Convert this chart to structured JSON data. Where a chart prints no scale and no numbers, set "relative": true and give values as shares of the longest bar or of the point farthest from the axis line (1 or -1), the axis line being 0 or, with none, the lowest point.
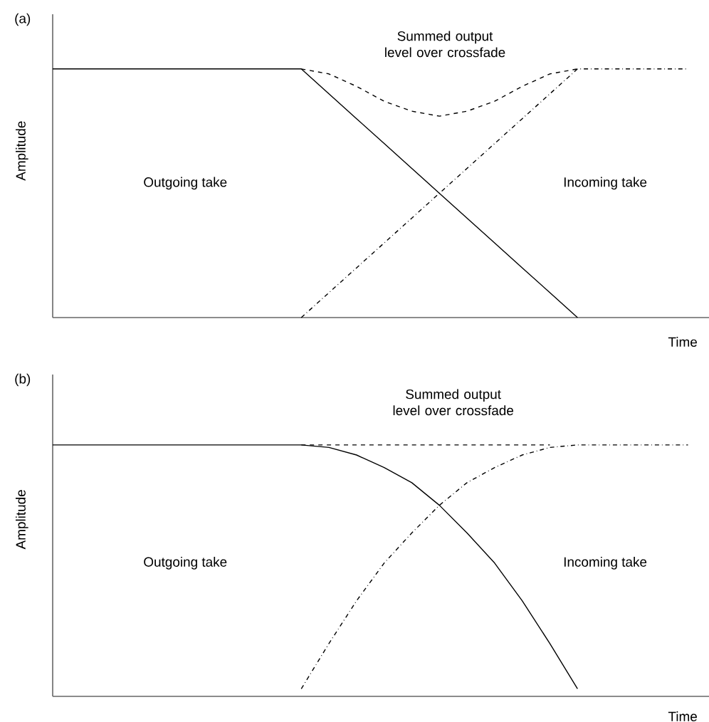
{
  "chart_data": [
    {
      "type": "line",
      "relative": true,
      "title": "(a)",
      "xlabel": "Time",
      "ylabel": "Amplitude",
      "annotations": [
        "Outgoing take",
        "Incoming take"
      ],
      "categories": [
        null,
        null,
        null,
        null,
        null,
        null,
        null,
        null,
        null,
        null,
        null,
        null,
        null,
        null,
        null,
        null,
        null,
        null,
        null,
        null,
        null,
        null,
        null,
        null
      ],
      "series": [
        {
          "color": "#000000",
          "line_style": "solid",
          "values": [
            1,
            1,
            1,
            1,
            1,
            1,
            1,
            1,
            1,
            1,
            0.9,
            0.8,
            0.7,
            0.6,
            0.5,
            0.4,
            0.3,
            0.2,
            0.1,
            0,
            null,
            null,
            null,
            null
          ]
        },
        {
          "color": "#000000",
          "line_style": "dashdot",
          "values": [
            null,
            null,
            null,
            null,
            null,
            null,
            null,
            null,
            null,
            0,
            0.1,
            0.2,
            0.3,
            0.4,
            0.5,
            0.6,
            0.7,
            0.8,
            0.9,
            1,
            1,
            1,
            1,
            1
          ]
        },
        {
          "name": "Summed output level over crossfade",
          "color": "#000000",
          "line_style": "dashed",
          "values": [
            null,
            null,
            null,
            null,
            null,
            null,
            null,
            null,
            null,
            1,
            0.98,
            0.93,
            0.87,
            0.83,
            0.81,
            0.83,
            0.87,
            0.93,
            0.98,
            1,
            null,
            null,
            null,
            null
          ]
        }
      ]
    },
    {
      "type": "line",
      "relative": true,
      "title": "(b)",
      "xlabel": "Time",
      "ylabel": "Amplitude",
      "annotations": [
        "Outgoing take",
        "Incoming take"
      ],
      "categories": [
        null,
        null,
        null,
        null,
        null,
        null,
        null,
        null,
        null,
        null,
        null,
        null,
        null,
        null,
        null,
        null,
        null,
        null,
        null,
        null,
        null,
        null,
        null,
        null
      ],
      "series": [
        {
          "color": "#000000",
          "line_style": "solid",
          "values": [
            1,
            1,
            1,
            1,
            1,
            1,
            1,
            1,
            1,
            1,
            0.99,
            0.96,
            0.91,
            0.85,
            0.76,
            0.65,
            0.53,
            0.38,
            0.21,
            0.03,
            null,
            null,
            null,
            null
          ]
        },
        {
          "color": "#000000",
          "line_style": "dashdot",
          "values": [
            null,
            null,
            null,
            null,
            null,
            null,
            null,
            null,
            null,
            0.03,
            0.21,
            0.38,
            0.53,
            0.65,
            0.76,
            0.85,
            0.91,
            0.96,
            0.99,
            1,
            1,
            1,
            1,
            1
          ]
        },
        {
          "name": "Summed output level over crossfade",
          "color": "#000000",
          "line_style": "dashed",
          "values": [
            null,
            null,
            null,
            null,
            null,
            null,
            null,
            null,
            null,
            1,
            1,
            1,
            1,
            1,
            1,
            1,
            1,
            1,
            1,
            null,
            null,
            null,
            null,
            null
          ]
        }
      ]
    }
  ]
}
